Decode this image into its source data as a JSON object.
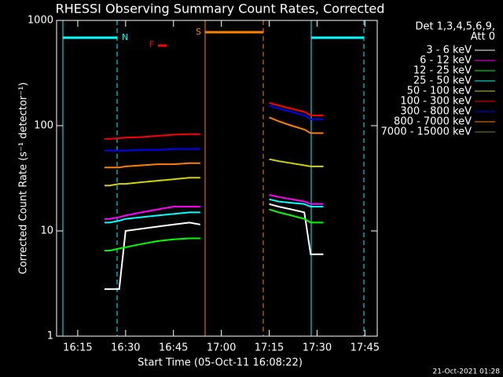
{
  "chart_data": {
    "type": "line",
    "title": "RHESSI Observing Summary Count Rates, Corrected",
    "y_label": "Corrected Count Rate (s⁻¹ detector⁻¹)",
    "x_label": "Start Time (05-Oct-11 16:08:22)",
    "legend_title": [
      "Det 1,3,4,5,6,9,",
      "Att 0"
    ],
    "timestamp": "21-Oct-2021 01:28",
    "annotations": [
      "N",
      "S",
      "F"
    ],
    "log_y": true,
    "ylim": [
      1,
      1000
    ],
    "yticks": [
      1,
      10,
      100,
      1000
    ],
    "xlim": [
      968.37,
      1068.86
    ],
    "xticks": [
      {
        "value": 975,
        "label": "16:15"
      },
      {
        "value": 990,
        "label": "16:30"
      },
      {
        "value": 1005,
        "label": "16:45"
      },
      {
        "value": 1020,
        "label": "17:00"
      },
      {
        "value": 1035,
        "label": "17:15"
      },
      {
        "value": 1050,
        "label": "17:30"
      },
      {
        "value": 1065,
        "label": "17:45"
      }
    ],
    "x": [
      983.4,
      985,
      988,
      990,
      995,
      1000,
      1005,
      1010,
      1013.4,
      1024,
      1035,
      1038,
      1042,
      1046,
      1048,
      1052
    ],
    "series": [
      {
        "name": "3 - 6 keV",
        "color": "#ffffff",
        "values": [
          2.8,
          2.8,
          2.8,
          10,
          10.5,
          11,
          11.5,
          12,
          11.5,
          null,
          18,
          17,
          16,
          15,
          6,
          6
        ]
      },
      {
        "name": "6 - 12 keV",
        "color": "#ff00ff",
        "values": [
          13,
          13,
          13.5,
          14,
          15,
          16,
          17,
          17,
          17,
          null,
          22,
          21,
          20,
          19,
          18,
          18
        ]
      },
      {
        "name": "12 - 25 keV",
        "color": "#00ff00",
        "values": [
          6.5,
          6.5,
          6.8,
          7,
          7.5,
          8,
          8.3,
          8.5,
          8.5,
          null,
          16,
          15,
          14,
          13,
          12,
          12
        ]
      },
      {
        "name": "25 - 50 keV",
        "color": "#00ffff",
        "values": [
          12,
          12,
          12.5,
          13,
          13.5,
          14,
          14.5,
          15,
          15,
          null,
          20,
          19,
          18.5,
          18,
          17,
          17
        ]
      },
      {
        "name": "50 - 100 keV",
        "color": "#d4d400",
        "values": [
          27,
          27,
          28,
          28,
          29,
          30,
          31,
          32,
          32,
          null,
          48,
          46,
          44,
          42,
          41,
          41
        ]
      },
      {
        "name": "100 - 300 keV",
        "color": "#ff0000",
        "values": [
          75,
          75,
          76,
          77,
          78,
          80,
          82,
          83,
          83,
          null,
          165,
          155,
          145,
          135,
          125,
          125
        ]
      },
      {
        "name": "300 - 800 keV",
        "color": "#0000ff",
        "values": [
          58,
          58,
          58,
          58,
          59,
          59,
          60,
          60,
          60,
          null,
          155,
          145,
          135,
          125,
          115,
          115
        ]
      },
      {
        "name": "800 - 7000 keV",
        "color": "#ff8000",
        "values": [
          40,
          40,
          40,
          41,
          42,
          43,
          43,
          44,
          44,
          null,
          120,
          110,
          100,
          92,
          85,
          85
        ]
      },
      {
        "name": "7000 - 15000 keV",
        "color": "#808000",
        "values": [
          null,
          null,
          null,
          null,
          null,
          null,
          null,
          null,
          null,
          null,
          null,
          null,
          null,
          null,
          null,
          null
        ]
      }
    ]
  }
}
